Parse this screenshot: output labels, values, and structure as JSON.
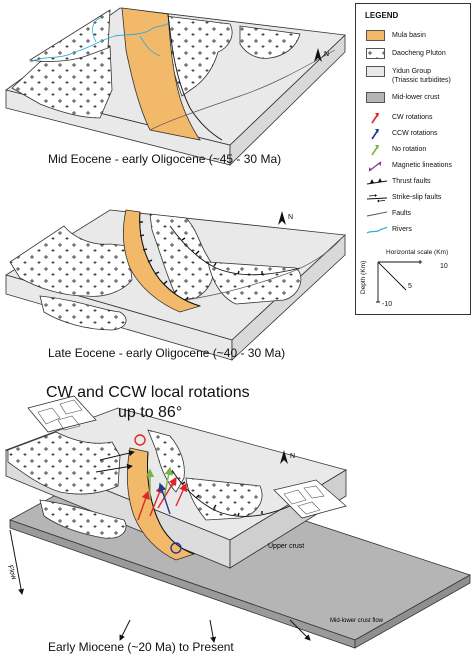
{
  "panels": {
    "panel1_caption": "Mid Eocene - early Oligocene (~45 - 30 Ma)",
    "panel2_caption": "Late Eocene - early Oligocene (~40 - 30 Ma)",
    "panel3_caption": "Early Miocene (~20 Ma) to Present",
    "panel3_title_line1": "CW and CCW local rotations",
    "panel3_title_line2": "up to 86°",
    "north_label": "N",
    "flow_label": "Flow",
    "upper_crust_label": "Upper crust",
    "mid_lower_crust_flow_label": "Mid-lower crust flow"
  },
  "legend": {
    "title": "LEGEND",
    "items": [
      {
        "label": "Mula basin",
        "color": "#f3b96a"
      },
      {
        "label": "Daocheng Pluton",
        "color": "#ffffff"
      },
      {
        "label": "Yidun Group",
        "sublabel": "(Triassic turbidites)",
        "color": "#e9e9e9"
      },
      {
        "label": "Mid-lower crust",
        "color": "#b5b5b5"
      },
      {
        "label": "CW rotations",
        "color": "#e0262a"
      },
      {
        "label": "CCW rotations",
        "color": "#1f3a8f"
      },
      {
        "label": "No rotation",
        "color": "#7cb342"
      },
      {
        "label": "Magnetic lineations",
        "color": "#8e3a8e"
      },
      {
        "label": "Thrust faults",
        "color": "#111111"
      },
      {
        "label": "Strike-slip faults",
        "color": "#111111"
      },
      {
        "label": "Faults",
        "color": "#555555"
      },
      {
        "label": "Rivers",
        "color": "#33a9d6"
      }
    ],
    "scale": {
      "title": "Horizontal scale (Km)",
      "depth_label": "Depth (Km)",
      "tick_10": "10",
      "tick_5": "5",
      "tick_neg10": "-10"
    }
  },
  "colors": {
    "basin": "#f3b96a",
    "yidun": "#e9e9e9",
    "crust": "#b5b5b5",
    "pluton": "#ffffff"
  }
}
